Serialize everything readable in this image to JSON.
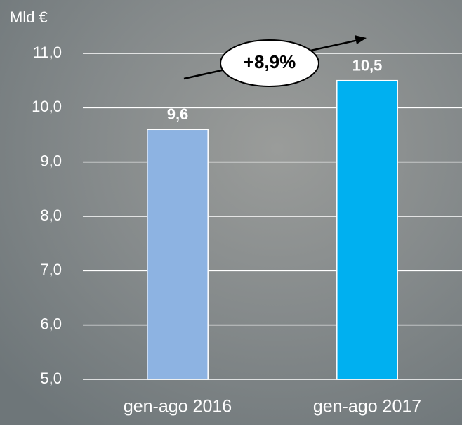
{
  "chart_data": {
    "type": "bar",
    "y_axis_label": "Mld €",
    "categories": [
      "gen-ago 2016",
      "gen-ago 2017"
    ],
    "values": [
      9.6,
      10.5
    ],
    "value_labels": [
      "9,6",
      "10,5"
    ],
    "colors": [
      "#8db3e2",
      "#00b0f0"
    ],
    "ylim": [
      5,
      11
    ],
    "yticks": [
      {
        "value": 5,
        "label": "5,0"
      },
      {
        "value": 6,
        "label": "6,0"
      },
      {
        "value": 7,
        "label": "7,0"
      },
      {
        "value": 8,
        "label": "8,0"
      },
      {
        "value": 9,
        "label": "9,0"
      },
      {
        "value": 10,
        "label": "10,0"
      },
      {
        "value": 11,
        "label": "11,0"
      }
    ],
    "grid": true,
    "annotation": "+8,9%"
  }
}
